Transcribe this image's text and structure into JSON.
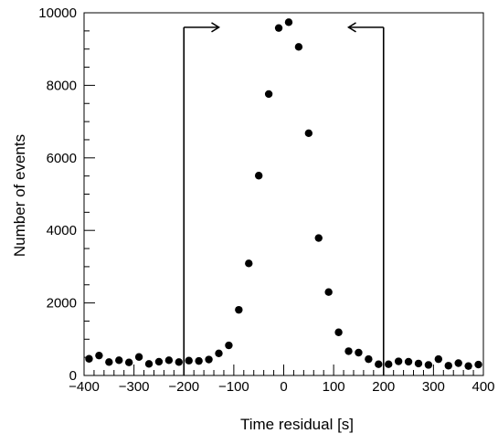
{
  "chart_data": {
    "type": "scatter",
    "title": "",
    "xlabel": "Time residual [s]",
    "ylabel": "Number of events",
    "xlim": [
      -400,
      400
    ],
    "ylim": [
      0,
      10000
    ],
    "x_ticks": [
      -400,
      -300,
      -200,
      -100,
      0,
      100,
      200,
      300,
      400
    ],
    "x_tick_labels": [
      "−400",
      "−300",
      "−200",
      "−100",
      "0",
      "100",
      "200",
      "300",
      "400"
    ],
    "y_ticks": [
      0,
      2000,
      4000,
      6000,
      8000,
      10000
    ],
    "y_tick_labels": [
      "0",
      "2000",
      "4000",
      "6000",
      "8000",
      "10000"
    ],
    "grid": false,
    "series": [
      {
        "x": [
          -390,
          -370,
          -350,
          -330,
          -310,
          -290,
          -270,
          -250,
          -230,
          -210,
          -190,
          -170,
          -150,
          -130,
          -110,
          -90,
          -70,
          -50,
          -30,
          -10,
          10,
          30,
          50,
          70,
          90,
          110,
          130,
          150,
          170,
          190,
          210,
          230,
          250,
          270,
          290,
          310,
          330,
          350,
          370,
          390
        ],
        "y": [
          460,
          550,
          370,
          420,
          360,
          510,
          320,
          380,
          420,
          370,
          410,
          400,
          440,
          610,
          830,
          1810,
          3090,
          5510,
          7760,
          9580,
          9740,
          9060,
          6680,
          3790,
          2300,
          1190,
          670,
          630,
          450,
          310,
          310,
          390,
          380,
          330,
          290,
          450,
          270,
          340,
          260,
          300
        ]
      }
    ],
    "annotations": [
      {
        "type": "selection-window",
        "x_start": -200,
        "x_end": 200,
        "y_top": 9600,
        "arrow_length": 70
      }
    ]
  }
}
